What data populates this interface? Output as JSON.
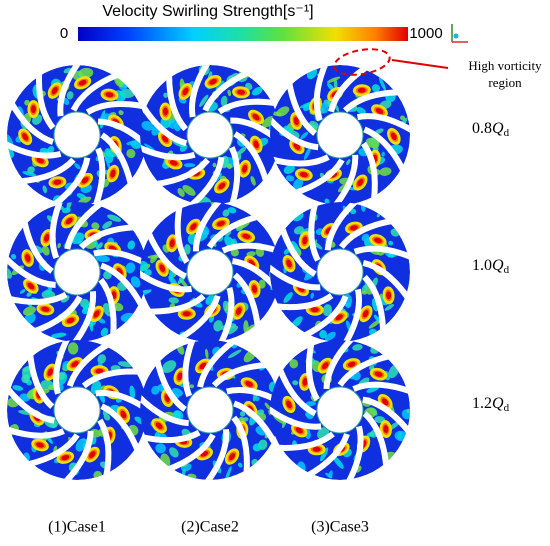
{
  "colorbar": {
    "title": "Velocity Swirling Strength[s⁻¹]",
    "min": 0,
    "max": 1000
  },
  "annotation": {
    "lines": [
      "High vorticity",
      "region"
    ]
  },
  "rows": [
    {
      "coef": "0.8",
      "symbol": "Q",
      "sub": "d"
    },
    {
      "coef": "1.0",
      "symbol": "Q",
      "sub": "d"
    },
    {
      "coef": "1.2",
      "symbol": "Q",
      "sub": "d"
    }
  ],
  "columns": [
    "(1)Case1",
    "(2)Case2",
    "(3)Case3"
  ]
}
